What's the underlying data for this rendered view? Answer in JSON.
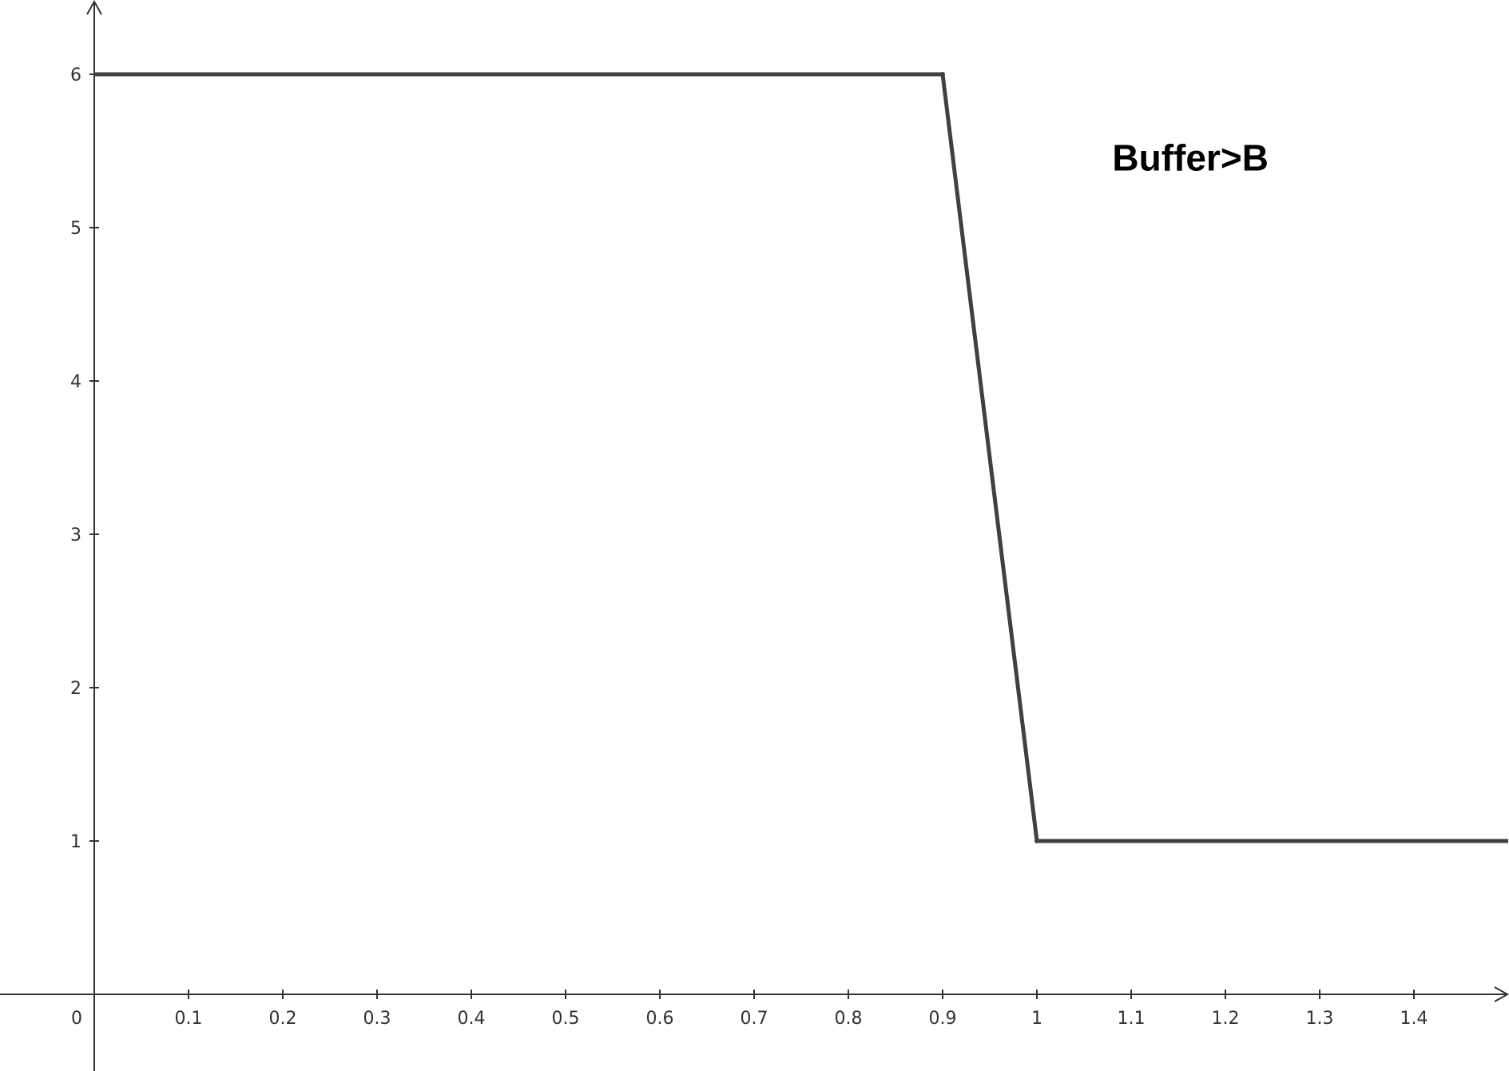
{
  "chart_data": {
    "type": "line",
    "title": "",
    "xlabel": "",
    "ylabel": "",
    "xlim": [
      -0.1,
      1.5
    ],
    "ylim": [
      -0.5,
      6.5
    ],
    "grid": false,
    "origin_label": "0",
    "x_ticks": [
      "0.1",
      "0.2",
      "0.3",
      "0.4",
      "0.5",
      "0.6",
      "0.7",
      "0.8",
      "0.9",
      "1",
      "1.1",
      "1.2",
      "1.3",
      "1.4"
    ],
    "y_ticks": [
      "1",
      "2",
      "3",
      "4",
      "5",
      "6"
    ],
    "series": [
      {
        "x": [
          0,
          0.9,
          1,
          1.5
        ],
        "y": [
          6,
          6,
          1,
          1
        ],
        "color": "#404040"
      }
    ],
    "annotations": [
      {
        "text": "Buffer>B",
        "x": 1.08,
        "y": 5.45
      }
    ]
  }
}
